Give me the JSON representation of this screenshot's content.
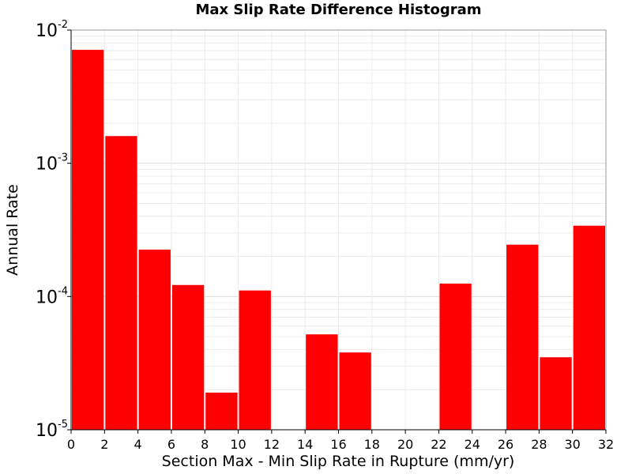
{
  "chart_data": {
    "type": "bar",
    "title": "Max Slip Rate Difference Histogram",
    "xlabel": "Section Max - Min Slip Rate in Rupture (mm/yr)",
    "ylabel": "Annual Rate",
    "yscale": "log",
    "xlim": [
      0,
      32
    ],
    "ylim": [
      1e-05,
      0.01
    ],
    "bin_width": 2,
    "x_ticks": [
      0,
      2,
      4,
      6,
      8,
      10,
      12,
      14,
      16,
      18,
      20,
      22,
      24,
      26,
      28,
      30,
      32
    ],
    "y_ticks": [
      {
        "base": "10",
        "exp": "-2",
        "value": 0.01
      },
      {
        "base": "10",
        "exp": "-3",
        "value": 0.001
      },
      {
        "base": "10",
        "exp": "-4",
        "value": 0.0001
      },
      {
        "base": "10",
        "exp": "-5",
        "value": 1e-05
      }
    ],
    "bins": [
      {
        "x": 1,
        "value": 0.0071
      },
      {
        "x": 3,
        "value": 0.0016
      },
      {
        "x": 5,
        "value": 0.000225
      },
      {
        "x": 7,
        "value": 0.000122
      },
      {
        "x": 9,
        "value": 1.9e-05
      },
      {
        "x": 11,
        "value": 0.000111
      },
      {
        "x": 13,
        "value": 0
      },
      {
        "x": 15,
        "value": 5.2e-05
      },
      {
        "x": 17,
        "value": 3.8e-05
      },
      {
        "x": 19,
        "value": 0
      },
      {
        "x": 21,
        "value": 0
      },
      {
        "x": 23,
        "value": 0.000125
      },
      {
        "x": 25,
        "value": 0
      },
      {
        "x": 27,
        "value": 0.000245
      },
      {
        "x": 29,
        "value": 3.5e-05
      },
      {
        "x": 31,
        "value": 0.00034
      }
    ],
    "bar_color": "#ff0000",
    "grid": true
  }
}
